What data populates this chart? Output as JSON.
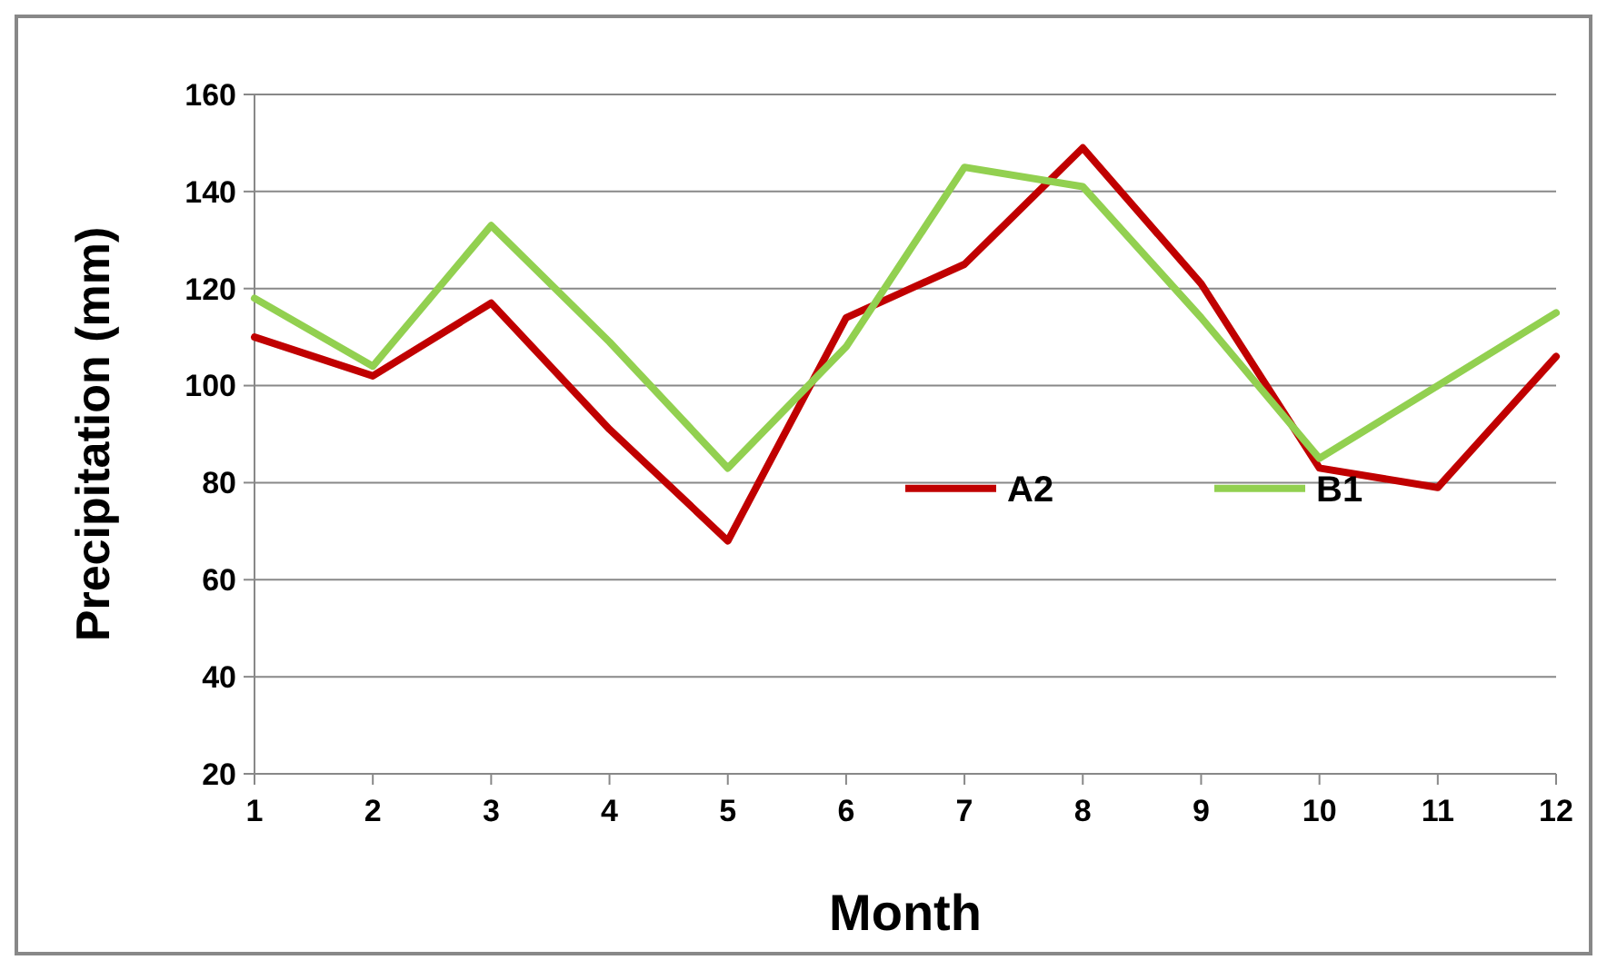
{
  "chart_data": {
    "type": "line",
    "xlabel": "Month",
    "ylabel": "Precipitation (mm)",
    "x": [
      1,
      2,
      3,
      4,
      5,
      6,
      7,
      8,
      9,
      10,
      11,
      12
    ],
    "series": [
      {
        "name": "A2",
        "color": "#c00000",
        "values": [
          110,
          102,
          117,
          91,
          68,
          114,
          125,
          149,
          121,
          83,
          79,
          106
        ]
      },
      {
        "name": "B1",
        "color": "#92d050",
        "values": [
          118,
          104,
          133,
          109,
          83,
          108,
          145,
          141,
          114,
          85,
          100,
          115
        ]
      }
    ],
    "xlim": [
      1,
      12
    ],
    "xticks": [
      1,
      2,
      3,
      4,
      5,
      6,
      7,
      8,
      9,
      10,
      11,
      12
    ],
    "ylim": [
      20,
      160
    ],
    "yticks": [
      20,
      40,
      60,
      80,
      100,
      120,
      140,
      160
    ],
    "grid": "y",
    "legend": "bottom right",
    "marker": "none",
    "line_style": "solid"
  }
}
